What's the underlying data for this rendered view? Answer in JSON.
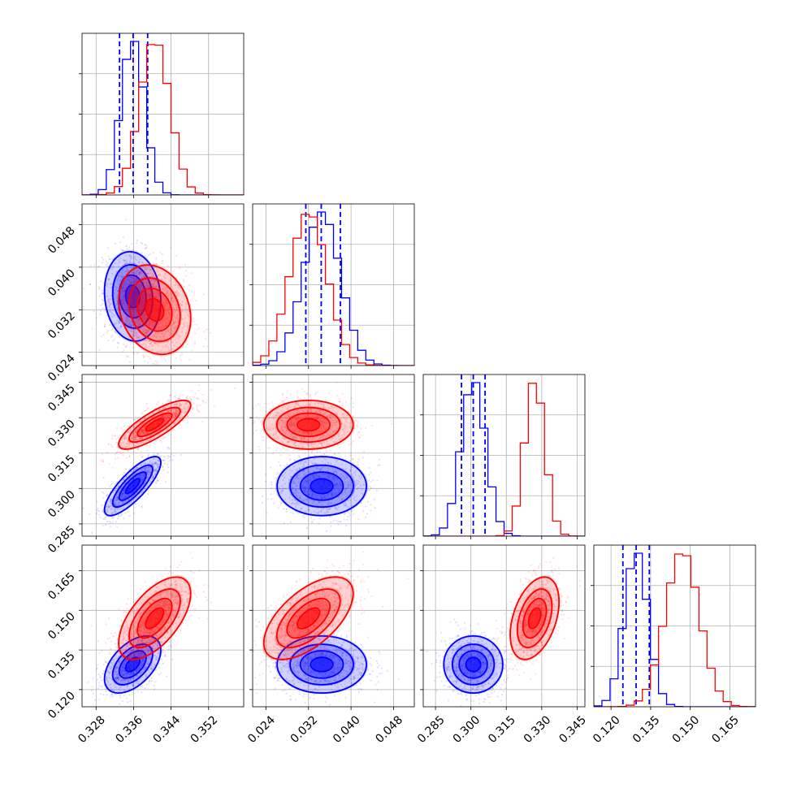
{
  "chart_data": {
    "type": "corner",
    "colors": {
      "blue": "#0000ff",
      "red": "#ff0000",
      "grid": "#b0b0b0"
    },
    "grid": true,
    "parameters": [
      {
        "range": [
          0.325,
          0.3595
        ],
        "ticks": [
          "0.328",
          "0.336",
          "0.344",
          "0.352"
        ],
        "tick_values": [
          0.328,
          0.336,
          0.344,
          0.352
        ]
      },
      {
        "range": [
          0.0215,
          0.0519
        ],
        "ticks": [
          "0.024",
          "0.032",
          "0.040",
          "0.048"
        ],
        "tick_values": [
          0.024,
          0.032,
          0.04,
          0.048
        ]
      },
      {
        "range": [
          0.2798,
          0.3483
        ],
        "ticks": [
          "0.285",
          "0.300",
          "0.315",
          "0.330",
          "0.345"
        ],
        "tick_values": [
          0.285,
          0.3,
          0.315,
          0.33,
          0.345
        ]
      },
      {
        "range": [
          0.1135,
          0.1747
        ],
        "ticks": [
          "0.120",
          "0.135",
          "0.150",
          "0.165"
        ],
        "tick_values": [
          0.12,
          0.135,
          0.15,
          0.165
        ]
      }
    ],
    "series": [
      {
        "color": "blue",
        "mean": [
          0.3358,
          0.0345,
          0.301,
          0.1295
        ],
        "sigma": [
          0.0025,
          0.0035,
          0.0052,
          0.0045
        ],
        "correlation": [
          [
            0,
            1,
            -0.1
          ],
          [
            0,
            2,
            0.8
          ],
          [
            0,
            3,
            0.5
          ],
          [
            1,
            2,
            0
          ],
          [
            1,
            3,
            0
          ],
          [
            2,
            3,
            0
          ]
        ],
        "quantiles": [
          [
            0.333,
            0.3359,
            0.339
          ],
          [
            0.0315,
            0.0344,
            0.038
          ],
          [
            0.296,
            0.301,
            0.306
          ],
          [
            0.1245,
            0.1295,
            0.1345
          ]
        ]
      },
      {
        "color": "red",
        "mean": [
          0.3405,
          0.032,
          0.327,
          0.147
        ],
        "sigma": [
          0.0032,
          0.0035,
          0.0043,
          0.0065
        ],
        "correlation": [
          [
            0,
            1,
            -0.2
          ],
          [
            0,
            2,
            0.8
          ],
          [
            0,
            3,
            0.6
          ],
          [
            1,
            2,
            0
          ],
          [
            1,
            3,
            0.6
          ],
          [
            2,
            3,
            0.4
          ]
        ]
      }
    ]
  }
}
